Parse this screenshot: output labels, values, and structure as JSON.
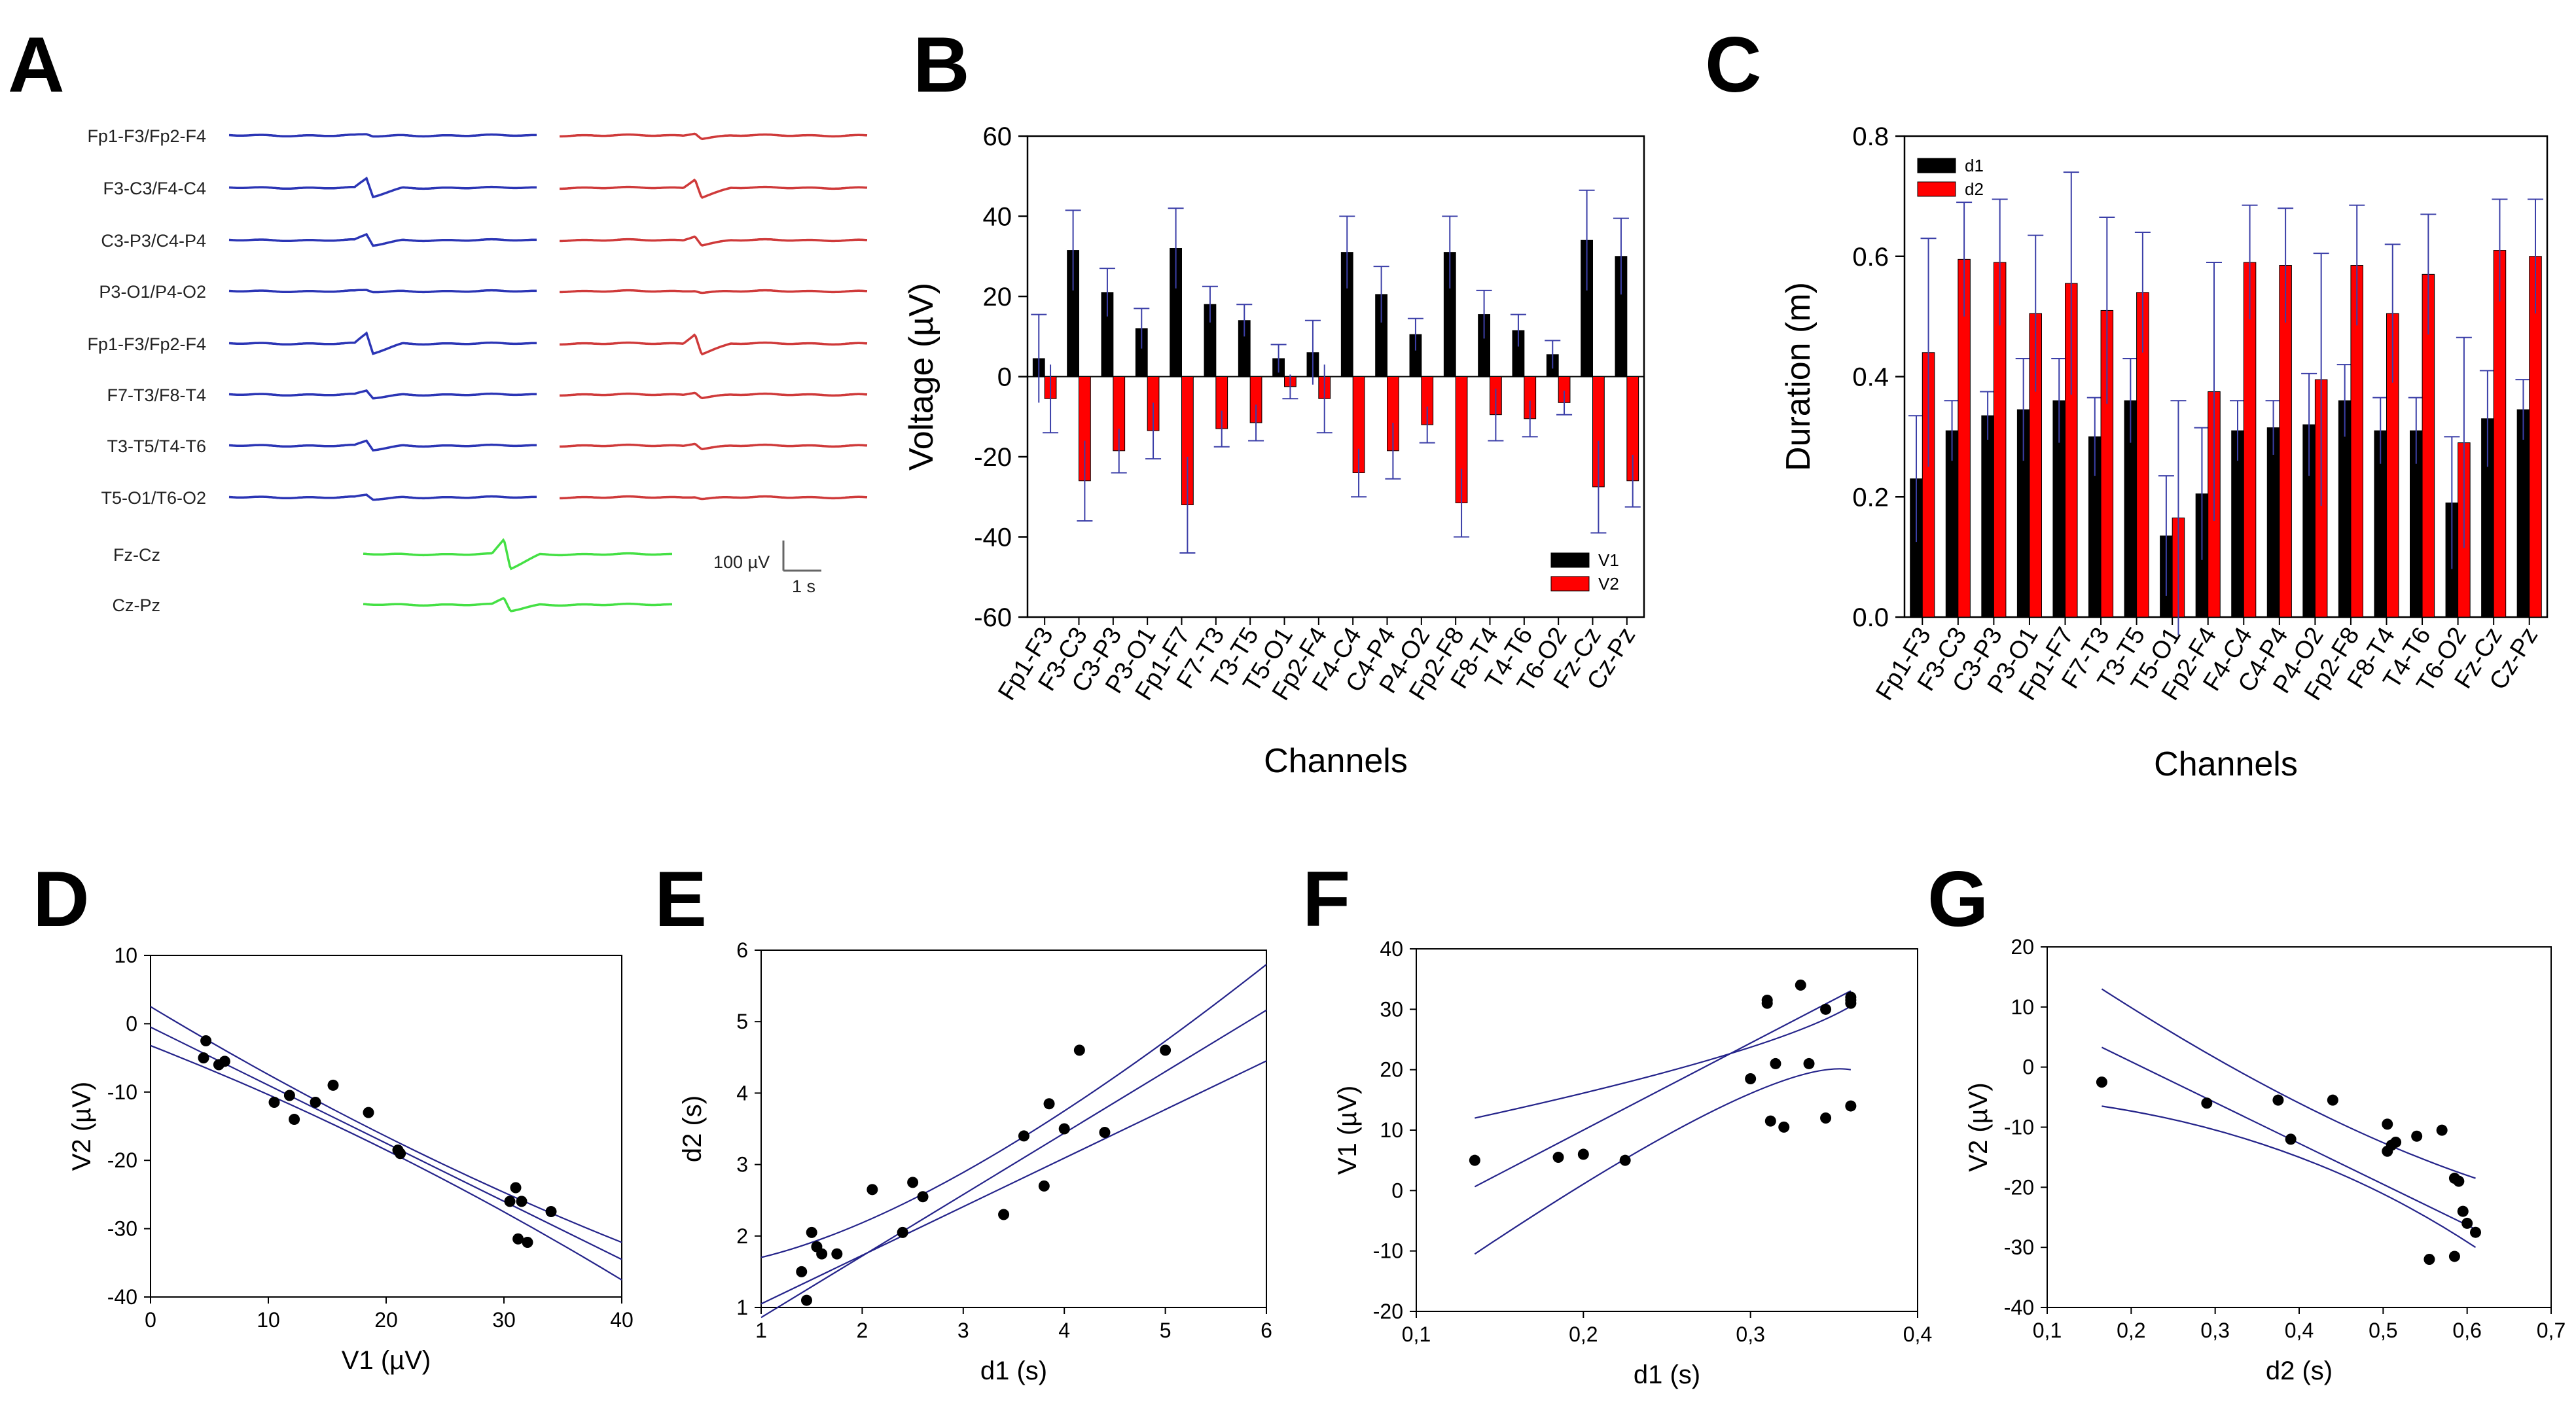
{
  "panel_letters": {
    "a": "A",
    "b": "B",
    "c": "C",
    "d": "D",
    "e": "E",
    "f": "F",
    "g": "G"
  },
  "eeg": {
    "channels": [
      "Fp1-F3/Fp2-F4",
      "F3-C3/F4-C4",
      "C3-P3/C4-P4",
      "P3-O1/P4-O2",
      "Fp1-F3/Fp2-F4",
      "F7-T3/F8-T4",
      "T3-T5/T4-T6",
      "T5-O1/T6-O2"
    ],
    "spike_amplitude_left": [
      0.1,
      1.0,
      0.6,
      0.1,
      1.1,
      0.4,
      0.5,
      0.25
    ],
    "spike_amplitude_right": [
      0.3,
      1.0,
      0.5,
      0.1,
      1.1,
      0.3,
      0.3,
      0.1
    ],
    "midline_channels": [
      "Fz-Cz",
      "Cz-Pz"
    ],
    "midline_amplitude": [
      1.6,
      0.7
    ],
    "scale_voltage": "100 µV",
    "scale_time": "1 s",
    "colors": {
      "left": "#2b35b5",
      "right": "#cf3a3a",
      "midline": "#44e044"
    }
  },
  "chart_data": [
    {
      "id": "B",
      "type": "bar",
      "categories": [
        "Fp1-F3",
        "F3-C3",
        "C3-P3",
        "P3-O1",
        "Fp1-F7",
        "F7-T3",
        "T3-T5",
        "T5-O1",
        "Fp2-F4",
        "F4-C4",
        "C4-P4",
        "P4-O2",
        "Fp2-F8",
        "F8-T4",
        "T4-T6",
        "T6-O2",
        "Fz-Cz",
        "Cz-Pz"
      ],
      "series": [
        {
          "name": "V1",
          "color": "#000000",
          "values": [
            4.5,
            31.5,
            21,
            12,
            32,
            18,
            14,
            4.5,
            6,
            31,
            20.5,
            10.5,
            31,
            15.5,
            11.5,
            5.5,
            34,
            30
          ],
          "errors": [
            11,
            10,
            6,
            5,
            10,
            4.5,
            4,
            3.5,
            8,
            9,
            7,
            4,
            9,
            6,
            4,
            3.5,
            12.5,
            9.5
          ]
        },
        {
          "name": "V2",
          "color": "#ff0000",
          "values": [
            -5.5,
            -26,
            -18.5,
            -13.5,
            -32,
            -13,
            -11.5,
            -2.5,
            -5.5,
            -24,
            -18.5,
            -12,
            -31.5,
            -9.5,
            -10.5,
            -6.5,
            -27.5,
            -26
          ],
          "errors": [
            8.5,
            10,
            5.5,
            7,
            12,
            4.5,
            4.5,
            3,
            8.5,
            6,
            7,
            4.5,
            8.5,
            6.5,
            4.5,
            3,
            11.5,
            6.5
          ]
        }
      ],
      "title": "",
      "xlabel": "Channels",
      "ylabel": "Voltage (µV)",
      "ylim": [
        -60,
        60
      ],
      "yticks": [
        -60,
        -40,
        -20,
        0,
        20,
        40,
        60
      ],
      "legend_position": "bottom-right"
    },
    {
      "id": "C",
      "type": "bar",
      "categories": [
        "Fp1-F3",
        "F3-C3",
        "C3-P3",
        "P3-O1",
        "Fp1-F7",
        "F7-T3",
        "T3-T5",
        "T5-O1",
        "Fp2-F4",
        "F4-C4",
        "C4-P4",
        "P4-O2",
        "Fp2-F8",
        "F8-T4",
        "T4-T6",
        "T6-O2",
        "Fz-Cz",
        "Cz-Pz"
      ],
      "series": [
        {
          "name": "d1",
          "color": "#000000",
          "values": [
            0.23,
            0.31,
            0.335,
            0.345,
            0.36,
            0.3,
            0.36,
            0.135,
            0.205,
            0.31,
            0.315,
            0.32,
            0.36,
            0.31,
            0.31,
            0.19,
            0.33,
            0.345
          ],
          "errors": [
            0.105,
            0.05,
            0.04,
            0.085,
            0.07,
            0.065,
            0.07,
            0.1,
            0.11,
            0.05,
            0.045,
            0.085,
            0.06,
            0.055,
            0.055,
            0.11,
            0.08,
            0.05
          ]
        },
        {
          "name": "d2",
          "color": "#ff0000",
          "values": [
            0.44,
            0.595,
            0.59,
            0.505,
            0.555,
            0.51,
            0.54,
            0.165,
            0.375,
            0.59,
            0.585,
            0.395,
            0.585,
            0.505,
            0.57,
            0.29,
            0.61,
            0.6
          ],
          "errors": [
            0.19,
            0.095,
            0.105,
            0.13,
            0.185,
            0.155,
            0.1,
            0.195,
            0.215,
            0.095,
            0.095,
            0.21,
            0.1,
            0.115,
            0.1,
            0.175,
            0.085,
            0.095
          ]
        }
      ],
      "title": "",
      "xlabel": "Channels",
      "ylabel": "Duration (m)",
      "ylim": [
        0,
        0.8
      ],
      "yticks": [
        0.0,
        0.2,
        0.4,
        0.6,
        0.8
      ],
      "legend_position": "top-left"
    },
    {
      "id": "D",
      "type": "scatter",
      "xlabel": "V1 (µV)",
      "ylabel": "V2 (µV)",
      "xlim": [
        0,
        40
      ],
      "ylim": [
        -40,
        10
      ],
      "xticks": [
        0,
        10,
        20,
        30,
        40
      ],
      "yticks": [
        -40,
        -30,
        -20,
        -10,
        0,
        10
      ],
      "x": [
        4.7,
        4.5,
        5.8,
        6.3,
        10.5,
        11.8,
        12.2,
        14,
        15.5,
        18.5,
        21,
        21.2,
        30.5,
        31,
        31.2,
        32,
        31.5,
        34
      ],
      "y": [
        -2.5,
        -5,
        -6,
        -5.5,
        -11.5,
        -10.5,
        -14,
        -11.5,
        -9,
        -13,
        -18.5,
        -19,
        -26,
        -24,
        -31.5,
        -32,
        -26,
        -27.5
      ],
      "fit": {
        "intercept": -0.5,
        "slope": -0.85
      },
      "ci": {
        "x": [
          0,
          20,
          40
        ],
        "upper": [
          2.5,
          -16.5,
          -32
        ],
        "lower": [
          -3.2,
          -18.5,
          -37.5
        ]
      }
    },
    {
      "id": "E",
      "type": "scatter",
      "xlabel": "d1 (s)",
      "ylabel": "d2 (s)",
      "xlim": [
        1,
        6
      ],
      "ylim": [
        1,
        6
      ],
      "xticks": [
        1,
        2,
        3,
        4,
        5,
        6
      ],
      "yticks": [
        1,
        2,
        3,
        4,
        5,
        6
      ],
      "x": [
        1.45,
        1.4,
        1.5,
        1.55,
        1.6,
        1.75,
        2.1,
        2.4,
        2.5,
        2.6,
        3.4,
        3.6,
        3.8,
        3.85,
        4,
        4.15,
        4.4,
        5
      ],
      "y": [
        1.1,
        1.5,
        2.05,
        1.85,
        1.75,
        1.75,
        2.65,
        2.05,
        2.75,
        2.55,
        2.3,
        3.4,
        2.7,
        3.85,
        3.5,
        4.6,
        3.45,
        4.6
      ],
      "fit": {
        "intercept": 0.0,
        "slope": 0.86
      },
      "ci": {
        "x": [
          1,
          3.2,
          6
        ],
        "upper": [
          1.7,
          3.05,
          5.8
        ],
        "lower": [
          1.05,
          2.55,
          4.45
        ]
      }
    },
    {
      "id": "F",
      "type": "scatter",
      "xlabel": "d1 (s)",
      "ylabel": "V1 (µV)",
      "xlim": [
        0.1,
        0.4
      ],
      "ylim": [
        -20,
        40
      ],
      "xticks": [
        0.1,
        0.2,
        0.3,
        0.4
      ],
      "yticks": [
        -20,
        -10,
        0,
        10,
        20,
        30,
        40
      ],
      "xtick_labels": [
        "0,1",
        "0,2",
        "0,3",
        "0,4"
      ],
      "x": [
        0.135,
        0.185,
        0.2,
        0.225,
        0.3,
        0.31,
        0.31,
        0.312,
        0.315,
        0.32,
        0.33,
        0.335,
        0.345,
        0.345,
        0.36,
        0.36,
        0.36,
        0.36
      ],
      "y": [
        5,
        5.5,
        6,
        5,
        18.5,
        31.5,
        31,
        11.5,
        21,
        10.5,
        34,
        21,
        30,
        12,
        14,
        31.5,
        32,
        31
      ],
      "fit": {
        "intercept": -18.8,
        "slope": 144
      },
      "ci": {
        "x": [
          0.135,
          0.28,
          0.36
        ],
        "upper": [
          12,
          22,
          30.5
        ],
        "lower": [
          -10.5,
          13.5,
          20
        ]
      }
    },
    {
      "id": "G",
      "type": "scatter",
      "xlabel": "d2 (s)",
      "ylabel": "V2 (µV)",
      "xlim": [
        0.1,
        0.7
      ],
      "ylim": [
        -40,
        20
      ],
      "xticks": [
        0.1,
        0.2,
        0.3,
        0.4,
        0.5,
        0.6,
        0.7
      ],
      "yticks": [
        -40,
        -30,
        -20,
        -10,
        0,
        10,
        20
      ],
      "xtick_labels": [
        "0,1",
        "0,2",
        "0,3",
        "0,4",
        "0,5",
        "0,6",
        "0,7"
      ],
      "x": [
        0.165,
        0.29,
        0.375,
        0.39,
        0.44,
        0.505,
        0.505,
        0.51,
        0.515,
        0.54,
        0.555,
        0.57,
        0.585,
        0.59,
        0.595,
        0.6,
        0.61,
        0.585
      ],
      "y": [
        -2.5,
        -6,
        -5.5,
        -12,
        -5.5,
        -9.5,
        -14,
        -13,
        -12.5,
        -11.5,
        -32,
        -10.5,
        -18.5,
        -19,
        -24,
        -26,
        -27.5,
        -31.5
      ],
      "fit": {
        "intercept": 14.5,
        "slope": -68
      },
      "ci": {
        "x": [
          0.165,
          0.4,
          0.61
        ],
        "upper": [
          13,
          -6,
          -18.5
        ],
        "lower": [
          -6.5,
          -15,
          -30
        ]
      }
    }
  ]
}
